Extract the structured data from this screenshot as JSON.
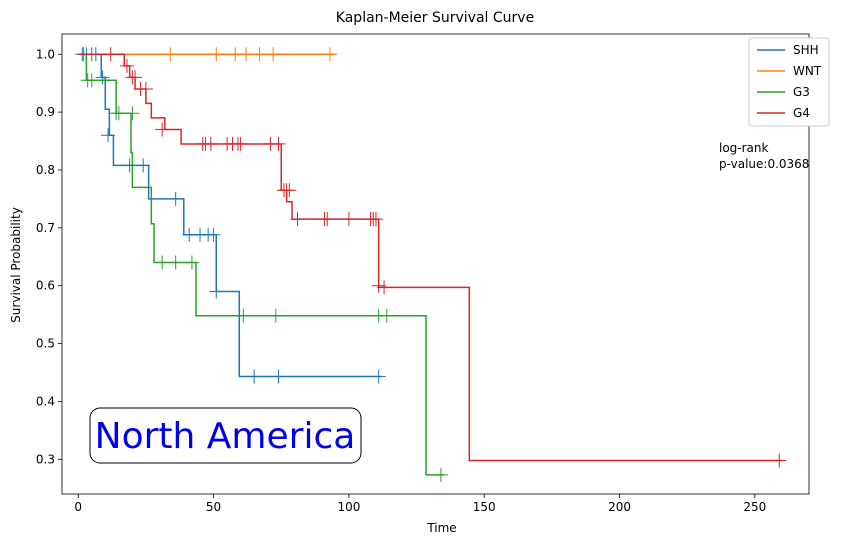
{
  "chart_data": {
    "type": "line",
    "title": "Kaplan-Meier Survival Curve",
    "xlabel": "Time",
    "ylabel": "Survival Probability",
    "xlim": [
      -6,
      270
    ],
    "ylim": [
      0.24,
      1.035
    ],
    "xticks": [
      0,
      50,
      100,
      150,
      200,
      250
    ],
    "yticks": [
      0.3,
      0.4,
      0.5,
      0.6,
      0.7,
      0.8,
      0.9,
      1.0
    ],
    "xtick_labels": [
      "0",
      "50",
      "100",
      "150",
      "200",
      "250"
    ],
    "ytick_labels": [
      "0.3",
      "0.4",
      "0.5",
      "0.6",
      "0.7",
      "0.8",
      "0.9",
      "1.0"
    ],
    "grid": false,
    "legend_position": "top-right",
    "annotation": [
      "log-rank",
      "p-value:0.0368"
    ],
    "region_label": "North America",
    "region_label_color": "#0000ee",
    "series": [
      {
        "name": "SHH",
        "color": "#1f77b4",
        "steps": [
          [
            0,
            1.0
          ],
          [
            8.5,
            0.96
          ],
          [
            10,
            0.905
          ],
          [
            11.5,
            0.86
          ],
          [
            13,
            0.808
          ],
          [
            26,
            0.75
          ],
          [
            39,
            0.688
          ],
          [
            51,
            0.59
          ],
          [
            59.5,
            0.443
          ],
          [
            112,
            0.443
          ]
        ],
        "censored": [
          [
            1.5,
            1.0
          ],
          [
            3,
            1.0
          ],
          [
            5,
            1.0
          ],
          [
            6.5,
            1.0
          ],
          [
            9,
            0.96
          ],
          [
            11,
            0.86
          ],
          [
            19,
            0.808
          ],
          [
            24,
            0.808
          ],
          [
            36,
            0.75
          ],
          [
            41,
            0.688
          ],
          [
            45,
            0.688
          ],
          [
            48,
            0.688
          ],
          [
            50,
            0.688
          ],
          [
            51,
            0.59
          ],
          [
            65,
            0.443
          ],
          [
            74,
            0.443
          ],
          [
            111,
            0.443
          ]
        ]
      },
      {
        "name": "WNT",
        "color": "#ff7f0e",
        "steps": [
          [
            0,
            1.0
          ],
          [
            95,
            1.0
          ]
        ],
        "censored": [
          [
            34,
            1.0
          ],
          [
            51,
            1.0
          ],
          [
            58,
            1.0
          ],
          [
            62,
            1.0
          ],
          [
            67,
            1.0
          ],
          [
            72,
            1.0
          ],
          [
            93,
            1.0
          ]
        ]
      },
      {
        "name": "G3",
        "color": "#2ca02c",
        "steps": [
          [
            0,
            1.0
          ],
          [
            3,
            0.955
          ],
          [
            14,
            0.898
          ],
          [
            19.5,
            0.83
          ],
          [
            20,
            0.77
          ],
          [
            27,
            0.707
          ],
          [
            28,
            0.64
          ],
          [
            43.5,
            0.548
          ],
          [
            128.5,
            0.273
          ],
          [
            135,
            0.273
          ]
        ],
        "censored": [
          [
            2,
            1.0
          ],
          [
            3.5,
            0.955
          ],
          [
            5,
            0.955
          ],
          [
            14,
            0.898
          ],
          [
            15,
            0.898
          ],
          [
            20,
            0.898
          ],
          [
            31,
            0.64
          ],
          [
            36,
            0.64
          ],
          [
            42,
            0.64
          ],
          [
            61,
            0.548
          ],
          [
            73,
            0.548
          ],
          [
            111,
            0.548
          ],
          [
            114,
            0.548
          ],
          [
            134,
            0.273
          ]
        ]
      },
      {
        "name": "G4",
        "color": "#d62728",
        "steps": [
          [
            0,
            1.0
          ],
          [
            17,
            0.98
          ],
          [
            19,
            0.96
          ],
          [
            21,
            0.94
          ],
          [
            25,
            0.915
          ],
          [
            27,
            0.89
          ],
          [
            32,
            0.87
          ],
          [
            38,
            0.845
          ],
          [
            75,
            0.765
          ],
          [
            77,
            0.745
          ],
          [
            79,
            0.715
          ],
          [
            111,
            0.597
          ],
          [
            144.5,
            0.298
          ],
          [
            260,
            0.298
          ]
        ],
        "censored": [
          [
            12,
            1.0
          ],
          [
            18,
            0.98
          ],
          [
            20,
            0.96
          ],
          [
            21,
            0.96
          ],
          [
            23,
            0.94
          ],
          [
            25,
            0.94
          ],
          [
            31,
            0.87
          ],
          [
            46,
            0.845
          ],
          [
            47,
            0.845
          ],
          [
            49,
            0.845
          ],
          [
            55,
            0.845
          ],
          [
            57,
            0.845
          ],
          [
            59,
            0.845
          ],
          [
            60,
            0.845
          ],
          [
            71,
            0.845
          ],
          [
            74,
            0.845
          ],
          [
            76,
            0.765
          ],
          [
            77,
            0.765
          ],
          [
            78,
            0.765
          ],
          [
            81,
            0.715
          ],
          [
            91,
            0.715
          ],
          [
            92,
            0.715
          ],
          [
            100,
            0.715
          ],
          [
            108,
            0.715
          ],
          [
            109,
            0.715
          ],
          [
            110,
            0.715
          ],
          [
            111,
            0.6
          ],
          [
            113,
            0.597
          ],
          [
            259,
            0.298
          ]
        ]
      }
    ]
  }
}
